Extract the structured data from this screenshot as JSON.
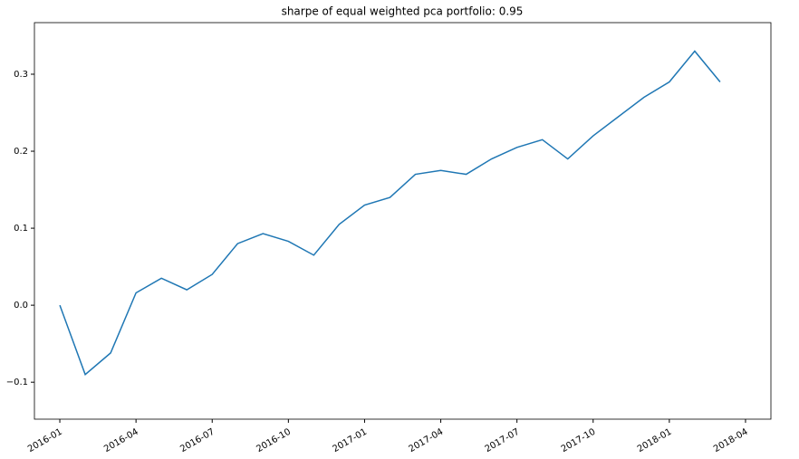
{
  "chart_data": {
    "type": "line",
    "title": "sharpe of equal weighted pca portfolio: 0.95",
    "x": [
      "2016-01",
      "2016-02",
      "2016-03",
      "2016-04",
      "2016-05",
      "2016-06",
      "2016-07",
      "2016-08",
      "2016-09",
      "2016-10",
      "2016-11",
      "2016-12",
      "2017-01",
      "2017-02",
      "2017-03",
      "2017-04",
      "2017-05",
      "2017-06",
      "2017-07",
      "2017-08",
      "2017-09",
      "2017-10",
      "2017-11",
      "2017-12",
      "2018-01",
      "2018-02",
      "2018-03"
    ],
    "series": [
      {
        "color": "#1f77b4",
        "values": [
          0.0,
          -0.09,
          -0.062,
          0.016,
          0.035,
          0.02,
          0.04,
          0.08,
          0.093,
          0.083,
          0.065,
          0.105,
          0.13,
          0.14,
          0.17,
          0.175,
          0.17,
          0.19,
          0.205,
          0.215,
          0.19,
          0.22,
          0.245,
          0.27,
          0.29,
          0.33,
          0.29
        ]
      }
    ],
    "xlim": [
      "2015-12",
      "2018-05"
    ],
    "xticks": [
      "2016-01",
      "2016-04",
      "2016-07",
      "2016-10",
      "2017-01",
      "2017-04",
      "2017-07",
      "2017-10",
      "2018-01",
      "2018-04"
    ],
    "ylim": [
      -0.148,
      0.367
    ],
    "yticks": [
      {
        "value": -0.1,
        "label": "−0.1"
      },
      {
        "value": 0,
        "label": "0.0"
      },
      0.1,
      0.2,
      0.3
    ]
  }
}
